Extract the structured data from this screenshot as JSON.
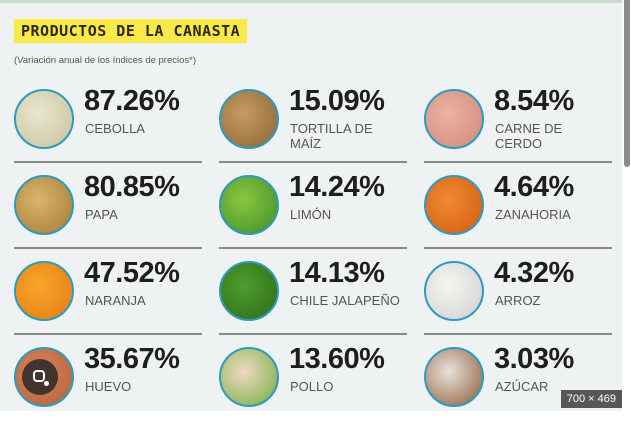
{
  "header": {
    "title": "PRODUCTOS DE LA CANASTA",
    "subtitle": "(Variación anual de los índices de precios*)"
  },
  "products": [
    {
      "name": "CEBOLLA",
      "value": "87.26%",
      "colors": [
        "#e8e6cf",
        "#c7c29a"
      ]
    },
    {
      "name": "TORTILLA DE MAÍZ",
      "value": "15.09%",
      "colors": [
        "#c79a62",
        "#8a6535"
      ]
    },
    {
      "name": "CARNE DE CERDO",
      "value": "8.54%",
      "colors": [
        "#e9b3a5",
        "#d48776"
      ]
    },
    {
      "name": "PAPA",
      "value": "80.85%",
      "colors": [
        "#d9b56a",
        "#a57a35"
      ]
    },
    {
      "name": "LIMÓN",
      "value": "14.24%",
      "colors": [
        "#8cc63f",
        "#3e8e2a"
      ]
    },
    {
      "name": "ZANAHORIA",
      "value": "4.64%",
      "colors": [
        "#f08a30",
        "#d35a12"
      ]
    },
    {
      "name": "NARANJA",
      "value": "47.52%",
      "colors": [
        "#f8a52a",
        "#e57c10"
      ]
    },
    {
      "name": "CHILE JALAPEÑO",
      "value": "14.13%",
      "colors": [
        "#4f9c2d",
        "#2d6b1a"
      ]
    },
    {
      "name": "ARROZ",
      "value": "4.32%",
      "colors": [
        "#f5f5f0",
        "#cfcfcf"
      ]
    },
    {
      "name": "HUEVO",
      "value": "35.67%",
      "colors": [
        "#d6845a",
        "#b5603a"
      ]
    },
    {
      "name": "POLLO",
      "value": "13.60%",
      "colors": [
        "#f1d9c3",
        "#6fae3c"
      ]
    },
    {
      "name": "AZÚCAR",
      "value": "3.03%",
      "colors": [
        "#e9e2dc",
        "#8a5a35"
      ]
    }
  ],
  "overlay": {
    "image_size": "700 × 469"
  },
  "accent": {
    "title_highlight": "#fbe94a",
    "circle_border": "#2d9ac0"
  }
}
